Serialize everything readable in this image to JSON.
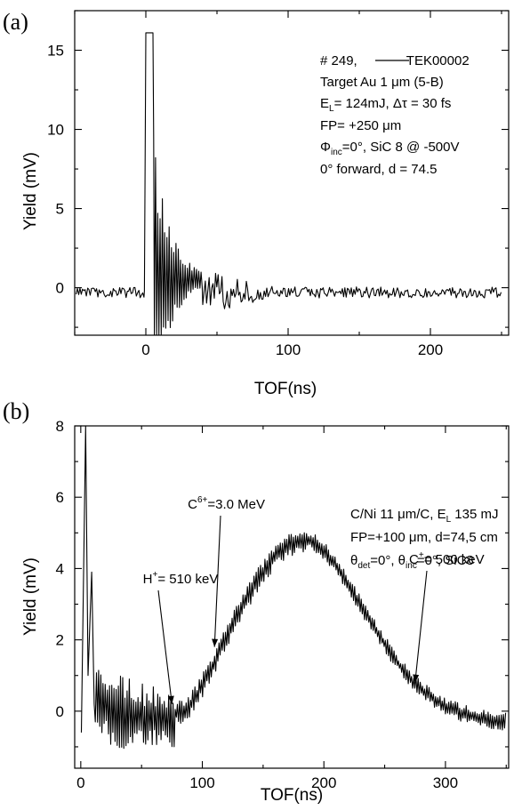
{
  "chart_data": [
    {
      "type": "line",
      "panel_label": "(a)",
      "xlabel": "TOF(ns)",
      "ylabel": "Yield (mV)",
      "xlim": [
        -50,
        255
      ],
      "ylim": [
        -3,
        17.5
      ],
      "xticks": [
        0,
        100,
        200
      ],
      "yticks": [
        0,
        5,
        10,
        15
      ],
      "xtick_labels": [
        "0",
        "100",
        "200"
      ],
      "ytick_labels": [
        "0",
        "5",
        "10",
        "15"
      ],
      "grid": false,
      "legend": "none",
      "series_shape": {
        "baseline": -0.3,
        "noise_amplitude": 0.35,
        "saturation_level": 16.1,
        "saturation_start": 0,
        "saturation_end": 5,
        "burst_start": 5,
        "burst_end": 40,
        "decay_end": 90,
        "x_end": 250
      },
      "annotations": [
        {
          "id": "a1",
          "parts": [
            {
              "t": "# 249, "
            },
            {
              "line": true
            },
            {
              "t": " TEK00002"
            }
          ]
        },
        {
          "id": "a2",
          "parts": [
            {
              "t": "Target Au 1 "
            },
            {
              "t": "μ"
            },
            {
              "t": "m (5-B)"
            }
          ]
        },
        {
          "id": "a3",
          "parts": [
            {
              "t": "E"
            },
            {
              "t": "L",
              "sub": true
            },
            {
              "t": "= 124mJ, Δτ = 30 fs"
            }
          ]
        },
        {
          "id": "a4",
          "parts": [
            {
              "t": "FP= +250 "
            },
            {
              "t": "μ"
            },
            {
              "t": "m"
            }
          ]
        },
        {
          "id": "a5",
          "parts": [
            {
              "t": "Φ"
            },
            {
              "t": "inc",
              "sub": true
            },
            {
              "t": "=0°, SiC 8 @ -500V"
            }
          ]
        },
        {
          "id": "a6",
          "parts": [
            {
              "t": "0° forward, d = 74.5"
            }
          ]
        }
      ],
      "arrows": []
    },
    {
      "type": "line",
      "panel_label": "(b)",
      "xlabel": "TOF(ns)",
      "ylabel": "Yield (mV)",
      "xlim": [
        -5,
        352
      ],
      "ylim": [
        -1.6,
        8
      ],
      "xticks": [
        0,
        100,
        200,
        300
      ],
      "yticks": [
        0,
        2,
        4,
        6,
        8
      ],
      "xtick_labels": [
        "0",
        "100",
        "200",
        "300"
      ],
      "ytick_labels": [
        "0",
        "2",
        "4",
        "6",
        "8"
      ],
      "grid": false,
      "legend": "none",
      "series_shape": {
        "initial_spike_x": [
          4,
          9
        ],
        "initial_spike_y": [
          8,
          3.9
        ],
        "noise_region_end": 78,
        "rise_start": 85,
        "peak_x": 185,
        "peak_y": 4.8,
        "tail_end": 350,
        "tail_level": -0.35
      },
      "annotations": [
        {
          "id": "b1",
          "parts": [
            {
              "t": "C/Ni 11 "
            },
            {
              "t": "μ"
            },
            {
              "t": "m/C, E"
            },
            {
              "t": "L",
              "sub": true
            },
            {
              "t": " 135 mJ"
            }
          ]
        },
        {
          "id": "b2",
          "parts": [
            {
              "t": "FP=+100 "
            },
            {
              "t": "μ"
            },
            {
              "t": "m, d=74,5 cm"
            }
          ]
        },
        {
          "id": "b3",
          "parts": [
            {
              "t": "θ"
            },
            {
              "t": "det",
              "sub": true
            },
            {
              "t": "=0°, θ"
            },
            {
              "t": "inc",
              "sub": true
            },
            {
              "t": "=0°, SiC8"
            }
          ]
        }
      ],
      "arrows": [
        {
          "id": "c6",
          "parts": [
            {
              "t": "C"
            },
            {
              "t": "6+",
              "sup": true
            },
            {
              "t": "=3.0 MeV"
            }
          ],
          "to": [
            110,
            1.8
          ]
        },
        {
          "id": "h1",
          "parts": [
            {
              "t": "H"
            },
            {
              "t": "+",
              "sup": true
            },
            {
              "t": "= 510 keV"
            }
          ],
          "to": [
            75,
            0.2
          ]
        },
        {
          "id": "c1",
          "parts": [
            {
              "t": "C"
            },
            {
              "t": "+",
              "sup": true
            },
            {
              "t": "= 500 keV"
            }
          ],
          "to": [
            275,
            0.8
          ]
        }
      ]
    }
  ]
}
